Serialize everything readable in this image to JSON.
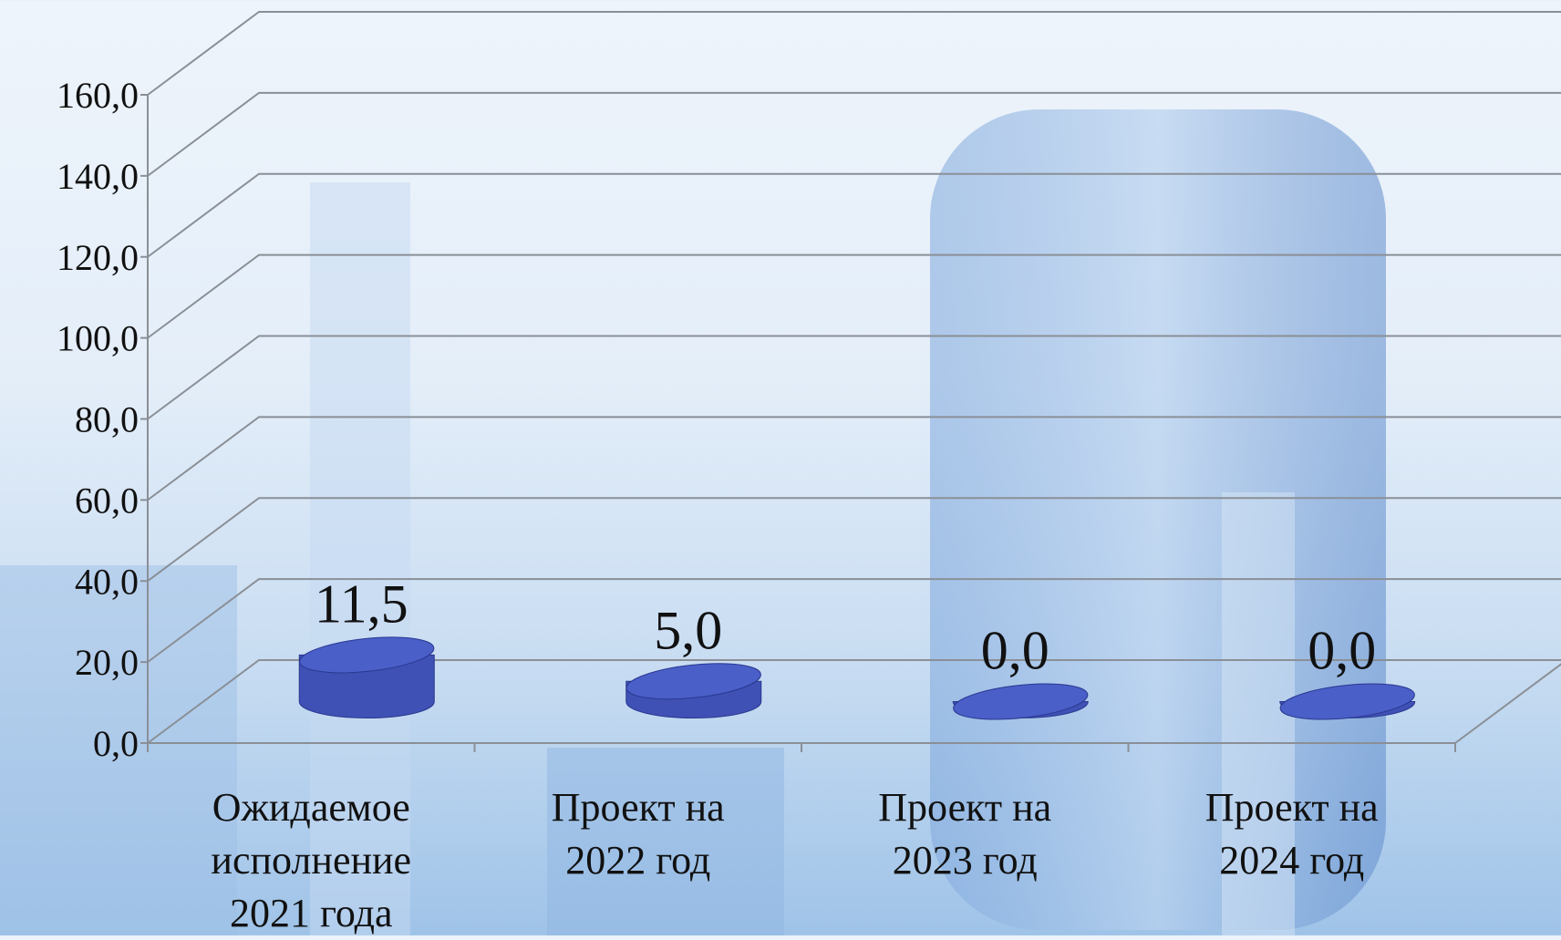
{
  "chart_data": {
    "type": "bar3d",
    "categories": [
      "Ожидаемое исполнение 2021 года",
      "Проект на 2022 год",
      "Проект на 2023 год",
      "Проект на 2024 год"
    ],
    "values": [
      11.5,
      5.0,
      0.0,
      0.0
    ],
    "value_labels": [
      "11,5",
      "5,0",
      "0,0",
      "0,0"
    ],
    "color": "#4a5fc8",
    "ylim": [
      0,
      160
    ],
    "yticks": [
      {
        "value": 0,
        "label": "0,0"
      },
      {
        "value": 20,
        "label": "20,0"
      },
      {
        "value": 40,
        "label": "40,0"
      },
      {
        "value": 60,
        "label": "60,0"
      },
      {
        "value": 80,
        "label": "80,0"
      },
      {
        "value": 100,
        "label": "100,0"
      },
      {
        "value": 120,
        "label": "120,0"
      },
      {
        "value": 140,
        "label": "140,0"
      },
      {
        "value": 160,
        "label": "160,0"
      }
    ],
    "grid": true
  }
}
